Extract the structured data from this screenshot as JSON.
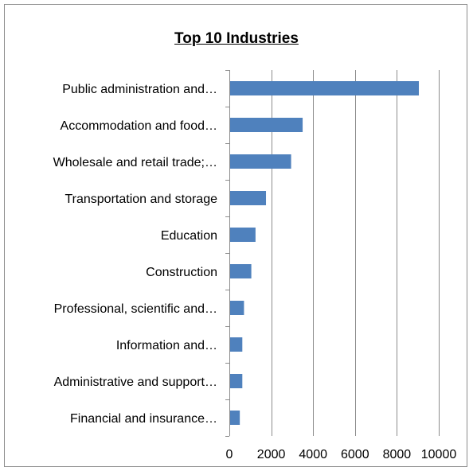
{
  "chart_data": {
    "type": "bar",
    "orientation": "horizontal",
    "title": "Top 10 Industries",
    "xlabel": "",
    "ylabel": "",
    "categories": [
      "Public administration and…",
      "Accommodation and food…",
      "Wholesale and retail trade;…",
      "Transportation and storage",
      "Education",
      "Construction",
      "Professional, scientific and…",
      "Information and…",
      "Administrative and support…",
      "Financial and insurance…"
    ],
    "values": [
      9050,
      3500,
      2950,
      1750,
      1250,
      1050,
      700,
      620,
      620,
      500
    ],
    "xlim": [
      0,
      10000
    ],
    "xticks": [
      "0",
      "2000",
      "4000",
      "6000",
      "8000",
      "10000"
    ],
    "grid": "vertical",
    "legend": "none",
    "bar_color": "#4f81bd",
    "grid_color": "#8c8c8c"
  }
}
